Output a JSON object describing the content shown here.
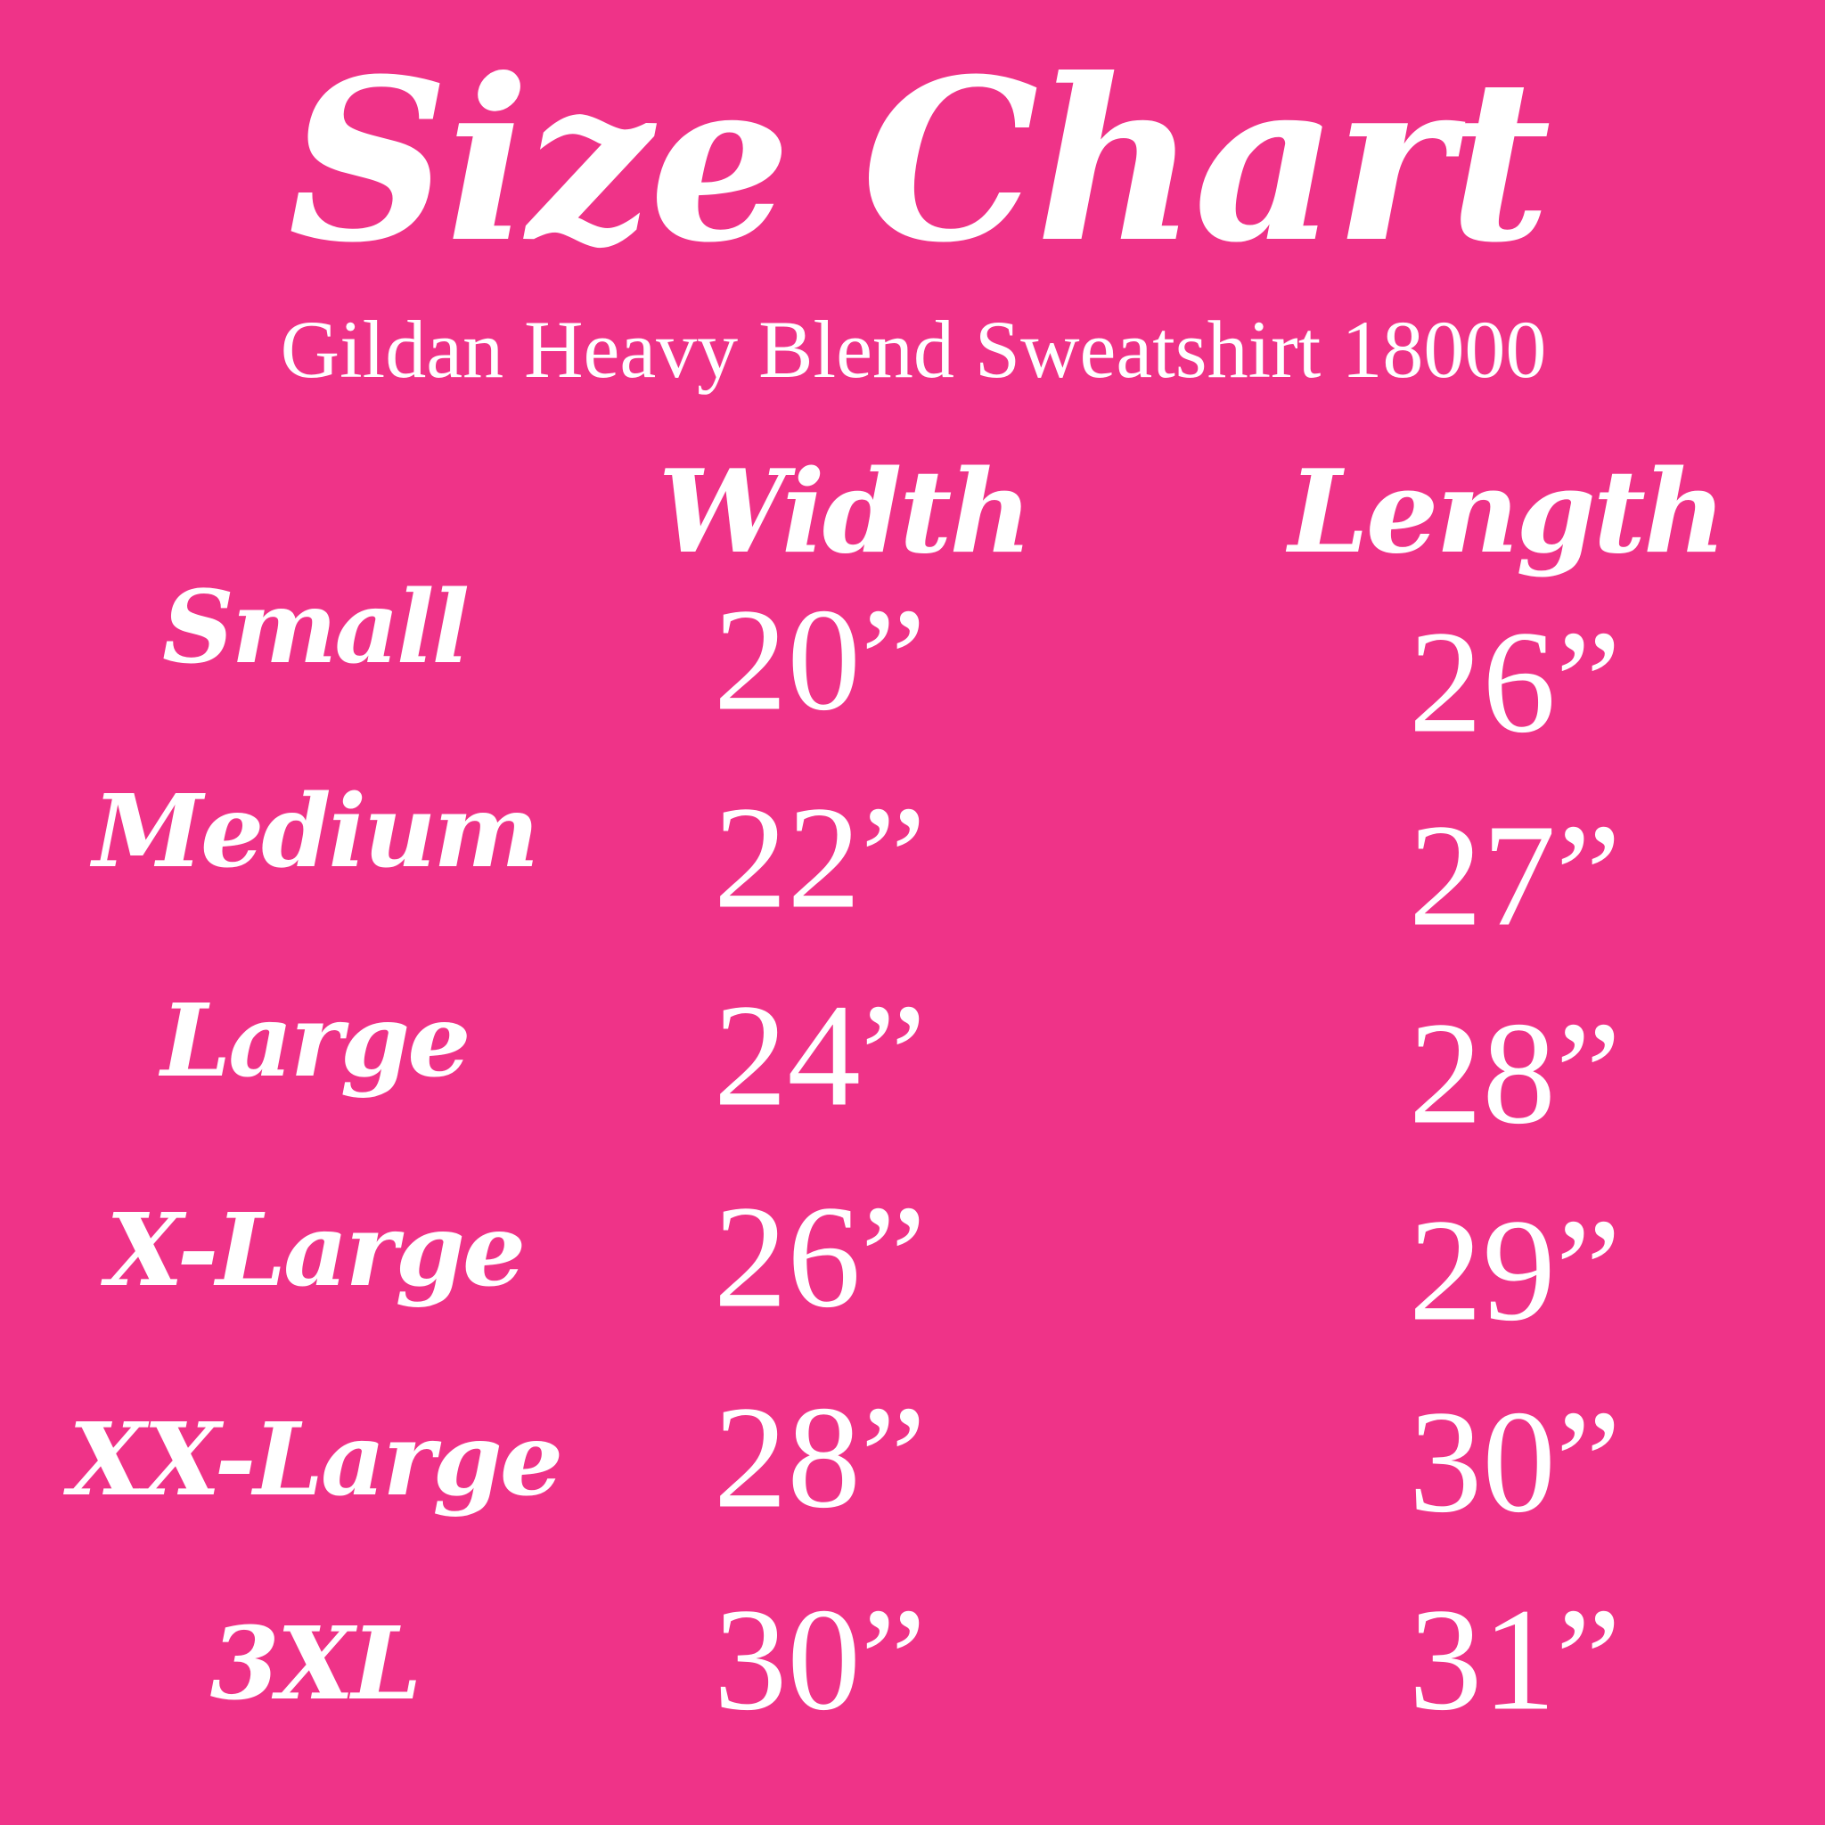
{
  "title": "Size Chart",
  "subtitle": "Gildan Heavy Blend Sweatshirt 18000",
  "background_color": "#EF3388",
  "text_color": "#FFFFFF",
  "columns": [
    "Width",
    "Length"
  ],
  "rows": [
    {
      "size": "Small",
      "width": "20”",
      "length": "26”"
    },
    {
      "size": "Medium",
      "width": "22”",
      "length": "27”"
    },
    {
      "size": "Large",
      "width": "24”",
      "length": "28”"
    },
    {
      "size": "X-Large",
      "width": "26”",
      "length": "29”"
    },
    {
      "size": "XX-Large",
      "width": "28”",
      "length": "30”"
    },
    {
      "size": "3XL",
      "width": "30”",
      "length": "31”"
    }
  ]
}
